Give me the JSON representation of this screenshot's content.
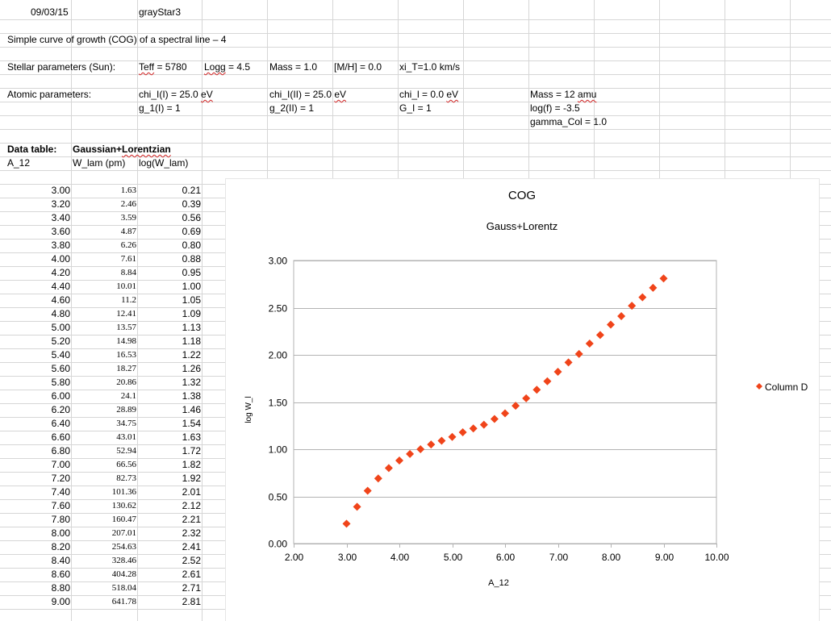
{
  "header": {
    "date": "09/03/15",
    "program": "grayStar3",
    "title": "Simple curve of growth (COG) of a spectral line – 4"
  },
  "stellar": {
    "label": "Stellar parameters (Sun):",
    "teff_key": "Teff",
    "teff_val": " = 5780",
    "logg_key": "Logg",
    "logg_val": " = 4.5",
    "mass": "Mass = 1.0",
    "mh": "[M/H] = 0.0",
    "xi": "xi_T=1.0 km/s"
  },
  "atomic": {
    "label": "Atomic parameters:",
    "chi1_pre": "chi_I(I) = 25.0 ",
    "chi1_unit": "eV",
    "g1": "g_1(I) = 1",
    "chi2_pre": "chi_I(II) = 25.0 ",
    "chi2_unit": "eV",
    "g2": "g_2(II) = 1",
    "chil_pre": "chi_l = 0.0 ",
    "chil_unit": "eV",
    "gl": "G_I = 1",
    "mass_pre": "Mass = 12 ",
    "mass_unit": "amu",
    "logf": "log(f) = -3.5",
    "gamma": "gamma_Col = 1.0"
  },
  "table": {
    "label": "Data table:",
    "profile_pre": "Gaussian+",
    "profile_word": "Lorentzian",
    "headers": [
      "A_12",
      "W_lam (pm)",
      "log(W_lam)"
    ],
    "rows": [
      [
        "3.00",
        "1.63",
        "0.21"
      ],
      [
        "3.20",
        "2.46",
        "0.39"
      ],
      [
        "3.40",
        "3.59",
        "0.56"
      ],
      [
        "3.60",
        "4.87",
        "0.69"
      ],
      [
        "3.80",
        "6.26",
        "0.80"
      ],
      [
        "4.00",
        "7.61",
        "0.88"
      ],
      [
        "4.20",
        "8.84",
        "0.95"
      ],
      [
        "4.40",
        "10.01",
        "1.00"
      ],
      [
        "4.60",
        "11.2",
        "1.05"
      ],
      [
        "4.80",
        "12.41",
        "1.09"
      ],
      [
        "5.00",
        "13.57",
        "1.13"
      ],
      [
        "5.20",
        "14.98",
        "1.18"
      ],
      [
        "5.40",
        "16.53",
        "1.22"
      ],
      [
        "5.60",
        "18.27",
        "1.26"
      ],
      [
        "5.80",
        "20.86",
        "1.32"
      ],
      [
        "6.00",
        "24.1",
        "1.38"
      ],
      [
        "6.20",
        "28.89",
        "1.46"
      ],
      [
        "6.40",
        "34.75",
        "1.54"
      ],
      [
        "6.60",
        "43.01",
        "1.63"
      ],
      [
        "6.80",
        "52.94",
        "1.72"
      ],
      [
        "7.00",
        "66.56",
        "1.82"
      ],
      [
        "7.20",
        "82.73",
        "1.92"
      ],
      [
        "7.40",
        "101.36",
        "2.01"
      ],
      [
        "7.60",
        "130.62",
        "2.12"
      ],
      [
        "7.80",
        "160.47",
        "2.21"
      ],
      [
        "8.00",
        "207.01",
        "2.32"
      ],
      [
        "8.20",
        "254.63",
        "2.41"
      ],
      [
        "8.40",
        "328.46",
        "2.52"
      ],
      [
        "8.60",
        "404.28",
        "2.61"
      ],
      [
        "8.80",
        "518.04",
        "2.71"
      ],
      [
        "9.00",
        "641.78",
        "2.81"
      ]
    ]
  },
  "chart_data": {
    "type": "scatter",
    "title": "COG",
    "subtitle": "Gauss+Lorentz",
    "xlabel": "A_12",
    "ylabel": "log W_l",
    "xlim": [
      2.0,
      10.0
    ],
    "ylim": [
      0.0,
      3.0
    ],
    "xticks": [
      "2.00",
      "3.00",
      "4.00",
      "5.00",
      "6.00",
      "7.00",
      "8.00",
      "9.00",
      "10.00"
    ],
    "yticks": [
      "0.00",
      "0.50",
      "1.00",
      "1.50",
      "2.00",
      "2.50",
      "3.00"
    ],
    "grid": true,
    "legend_position": "right",
    "color": "#f0441a",
    "series": [
      {
        "name": "Column D",
        "x": [
          3.0,
          3.2,
          3.4,
          3.6,
          3.8,
          4.0,
          4.2,
          4.4,
          4.6,
          4.8,
          5.0,
          5.2,
          5.4,
          5.6,
          5.8,
          6.0,
          6.2,
          6.4,
          6.6,
          6.8,
          7.0,
          7.2,
          7.4,
          7.6,
          7.8,
          8.0,
          8.2,
          8.4,
          8.6,
          8.8,
          9.0
        ],
        "y": [
          0.21,
          0.39,
          0.56,
          0.69,
          0.8,
          0.88,
          0.95,
          1.0,
          1.05,
          1.09,
          1.13,
          1.18,
          1.22,
          1.26,
          1.32,
          1.38,
          1.46,
          1.54,
          1.63,
          1.72,
          1.82,
          1.92,
          2.01,
          2.12,
          2.21,
          2.32,
          2.41,
          2.52,
          2.61,
          2.71,
          2.81
        ]
      }
    ]
  }
}
